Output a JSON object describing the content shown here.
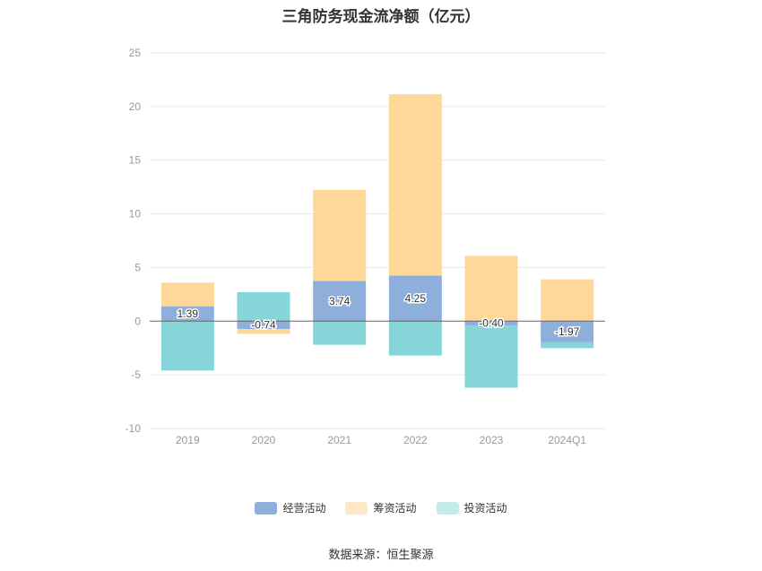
{
  "title": "三角防务现金流净额（亿元）",
  "source": "数据来源：恒生聚源",
  "colors": {
    "operating": "#8eaedc",
    "financing": "#fed898",
    "investing": "#86d6d9",
    "grid": "#e6e6e6",
    "axis_text": "#999999",
    "zero_line": "#666666"
  },
  "chart_data": {
    "type": "bar",
    "stacked": true,
    "title": "三角防务现金流净额（亿元）",
    "categories": [
      "2019",
      "2020",
      "2021",
      "2022",
      "2023",
      "2024Q1"
    ],
    "series": [
      {
        "name": "经营活动",
        "values": [
          1.39,
          -0.74,
          3.74,
          4.25,
          -0.4,
          -1.97
        ]
      },
      {
        "name": "筹资活动",
        "values": [
          2.2,
          -0.45,
          8.5,
          16.9,
          6.1,
          3.9
        ]
      },
      {
        "name": "投资活动",
        "values": [
          -4.6,
          2.7,
          -2.2,
          -3.2,
          -5.8,
          -0.55
        ]
      }
    ],
    "data_labels": [
      "1.39",
      "-0.74",
      "3.74",
      "4.25",
      "-0.40",
      "-1.97"
    ],
    "ylim": [
      -10,
      25
    ],
    "yticks": [
      -10,
      -5,
      0,
      5,
      10,
      15,
      20,
      25
    ],
    "grid": true,
    "legend_position": "bottom"
  },
  "legend": [
    {
      "label": "经营活动",
      "color": "#8eaedc"
    },
    {
      "label": "筹资活动",
      "color": "#fed898"
    },
    {
      "label": "投资活动",
      "color": "#86d6d9"
    }
  ]
}
